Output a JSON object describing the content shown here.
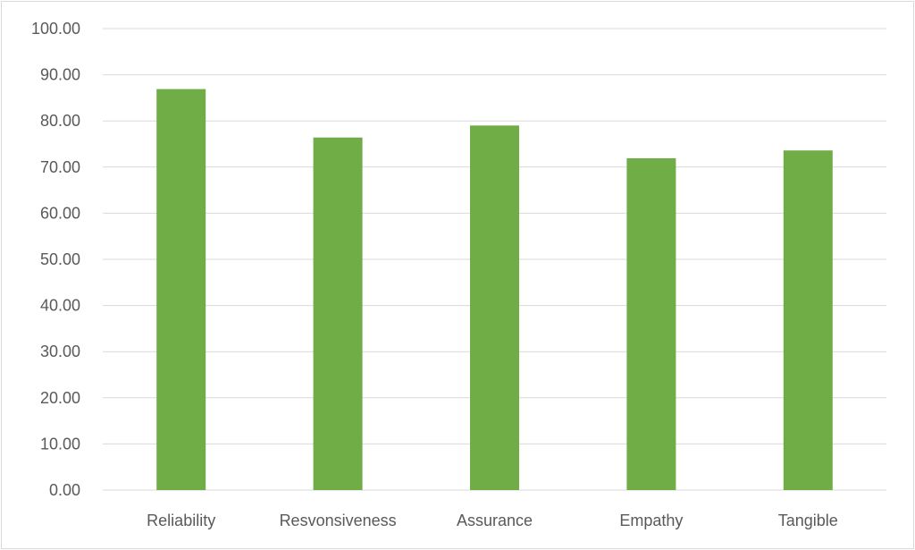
{
  "chart_data": {
    "type": "bar",
    "title": "",
    "xlabel": "",
    "ylabel": "",
    "categories": [
      "Reliability",
      "Resvonsiveness",
      "Assurance",
      "Empathy",
      "Tangible"
    ],
    "values": [
      86.9,
      76.4,
      79.0,
      71.9,
      73.6
    ],
    "ylim": [
      0,
      100
    ],
    "yticks": [
      "0.00",
      "10.00",
      "20.00",
      "30.00",
      "40.00",
      "50.00",
      "60.00",
      "70.00",
      "80.00",
      "90.00",
      "100.00"
    ],
    "grid": true,
    "legend": "none",
    "bar_color": "#70ad47"
  }
}
